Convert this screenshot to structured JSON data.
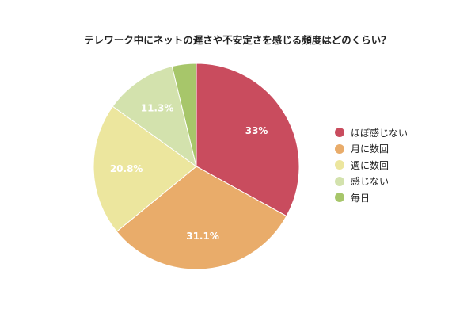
{
  "chart_data": {
    "type": "pie",
    "title": "テレワーク中にネットの遅さや不安定さを感じる頻度はどのくらい？",
    "categories": [
      "ほぼ感じない",
      "月に数回",
      "週に数回",
      "感じない",
      "毎日"
    ],
    "values": [
      33,
      31.1,
      20.8,
      11.3,
      3.8
    ],
    "value_labels": [
      "33%",
      "31.1%",
      "20.8%",
      "11.3%",
      ""
    ],
    "colors": [
      "#c94c5e",
      "#e9ac6a",
      "#ece69e",
      "#d3e2ad",
      "#a7c66a"
    ],
    "legend_position": "right"
  }
}
